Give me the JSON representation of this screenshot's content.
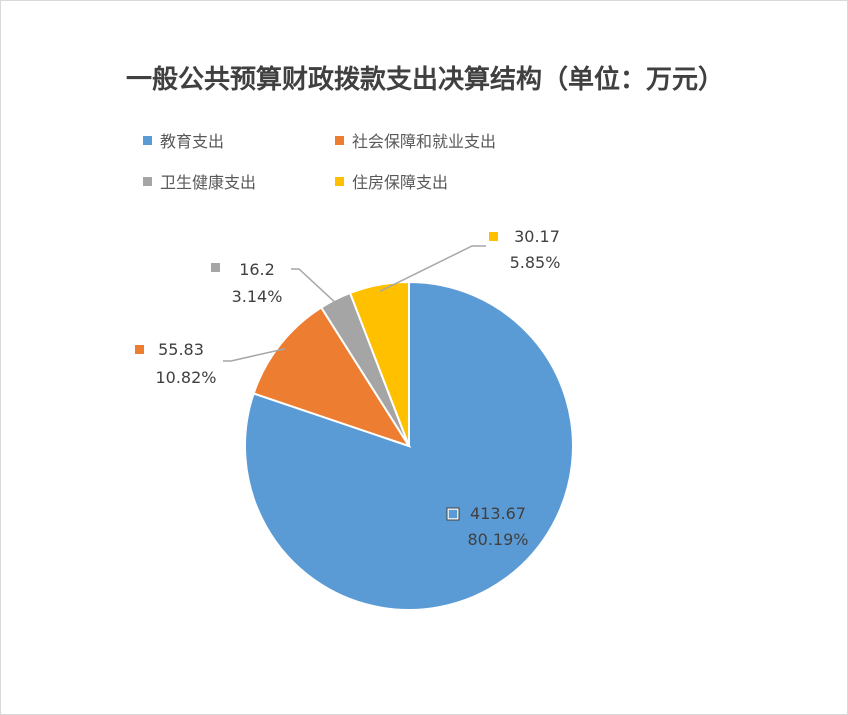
{
  "chart_data": {
    "type": "pie",
    "title": "一般公共预算财政拨款支出决算结构（单位：万元）",
    "legend_position": "top-left",
    "slices": [
      {
        "name": "教育支出",
        "value": 413.67,
        "value_label": "413.67",
        "percent_label": "80.19%",
        "color": "#5b9bd5"
      },
      {
        "name": "社会保障和就业支出",
        "value": 55.83,
        "value_label": "55.83",
        "percent_label": "10.82%",
        "color": "#ed7d31"
      },
      {
        "name": "卫生健康支出",
        "value": 16.2,
        "value_label": "16.2",
        "percent_label": "3.14%",
        "color": "#a5a5a5"
      },
      {
        "name": "住房保障支出",
        "value": 30.17,
        "value_label": "30.17",
        "percent_label": "5.85%",
        "color": "#ffc000"
      }
    ]
  }
}
